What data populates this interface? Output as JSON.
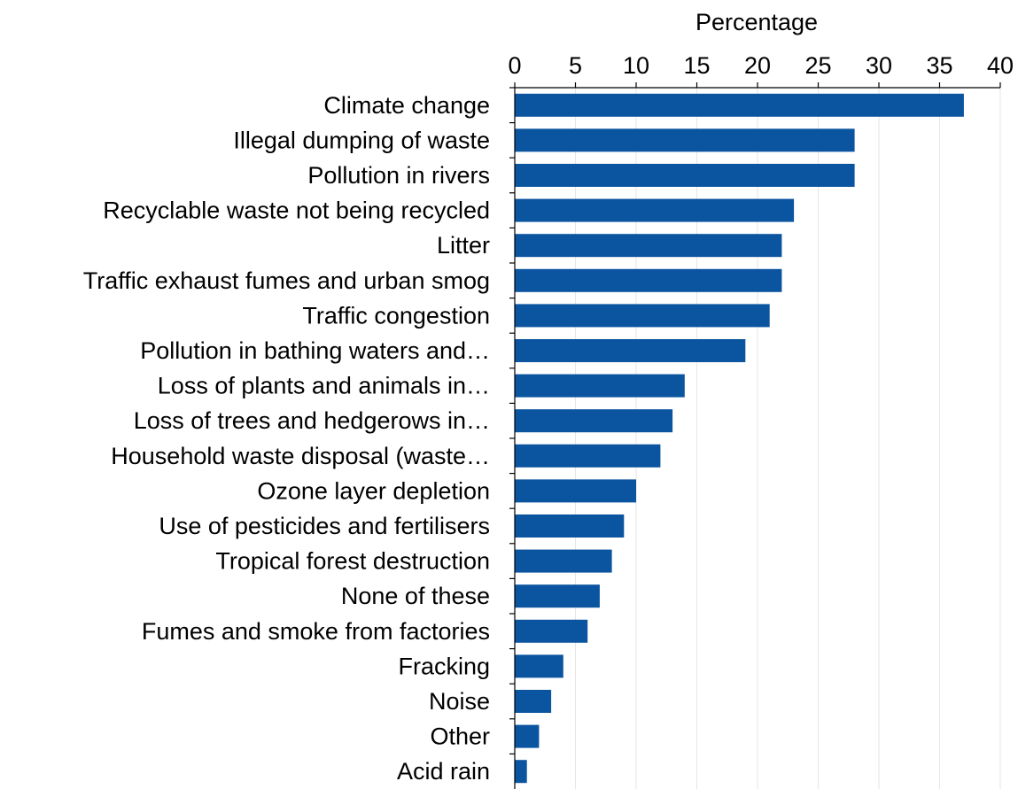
{
  "chart_data": {
    "type": "bar",
    "orientation": "horizontal",
    "xlabel": "Percentage",
    "ylabel": "",
    "xlim": [
      0,
      40
    ],
    "xticks": [
      0,
      5,
      10,
      15,
      20,
      25,
      30,
      35,
      40
    ],
    "x_axis_position": "top",
    "grid": "vertical",
    "bar_color": "#0b54a0",
    "categories": [
      "Climate change",
      "Illegal dumping of waste",
      "Pollution in rivers",
      "Recyclable waste not being recycled",
      "Litter",
      "Traffic exhaust fumes and urban smog",
      "Traffic congestion",
      "Pollution in bathing waters and…",
      "Loss of plants and animals in…",
      "Loss of trees and hedgerows in…",
      "Household waste disposal (waste…",
      "Ozone layer depletion",
      "Use of pesticides and fertilisers",
      "Tropical forest destruction",
      "None of these",
      "Fumes and smoke from factories",
      "Fracking",
      "Noise",
      "Other",
      "Acid rain"
    ],
    "values": [
      37,
      28,
      28,
      23,
      22,
      22,
      21,
      19,
      14,
      13,
      12,
      10,
      9,
      8,
      7,
      6,
      4,
      3,
      2,
      1
    ]
  }
}
